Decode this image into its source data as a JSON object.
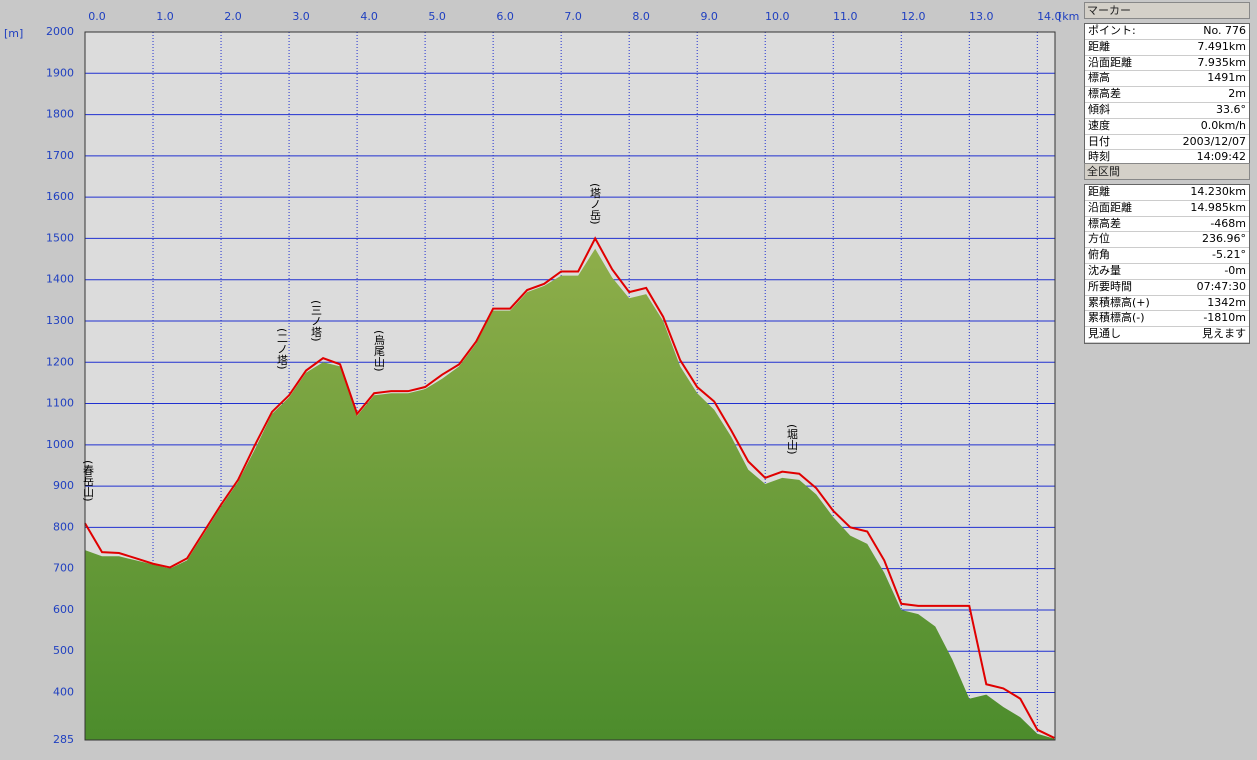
{
  "chart_data": {
    "type": "elevation-profile",
    "x_unit": "[km]",
    "y_unit": "[m]",
    "x": [
      0,
      0.25,
      0.5,
      0.75,
      1,
      1.25,
      1.5,
      1.75,
      2,
      2.25,
      2.5,
      2.75,
      3,
      3.25,
      3.5,
      3.75,
      4,
      4.25,
      4.5,
      4.75,
      5,
      5.25,
      5.5,
      5.75,
      6,
      6.25,
      6.5,
      6.75,
      7,
      7.25,
      7.5,
      7.75,
      8,
      8.25,
      8.5,
      8.75,
      9,
      9.25,
      9.5,
      9.75,
      10,
      10.25,
      10.5,
      10.75,
      11,
      11.25,
      11.5,
      11.75,
      12,
      12.25,
      12.5,
      12.75,
      13,
      13.25,
      13.5,
      13.75,
      14,
      14.25
    ],
    "series": [
      {
        "kind": "area",
        "color": "#5f9a36",
        "values": [
          745,
          730,
          730,
          720,
          710,
          700,
          720,
          785,
          850,
          910,
          990,
          1075,
          1115,
          1175,
          1200,
          1190,
          1070,
          1120,
          1125,
          1125,
          1135,
          1160,
          1190,
          1245,
          1325,
          1325,
          1370,
          1385,
          1410,
          1410,
          1475,
          1405,
          1355,
          1365,
          1300,
          1190,
          1125,
          1085,
          1020,
          940,
          905,
          920,
          915,
          880,
          825,
          780,
          760,
          690,
          600,
          590,
          560,
          480,
          385,
          395,
          365,
          340,
          300,
          288
        ]
      },
      {
        "kind": "line",
        "color": "#e00000",
        "values": [
          810,
          740,
          738,
          725,
          712,
          703,
          725,
          790,
          855,
          915,
          1000,
          1080,
          1120,
          1180,
          1210,
          1195,
          1075,
          1125,
          1130,
          1130,
          1140,
          1170,
          1195,
          1250,
          1330,
          1330,
          1375,
          1390,
          1420,
          1420,
          1500,
          1425,
          1370,
          1380,
          1310,
          1205,
          1140,
          1105,
          1035,
          960,
          920,
          935,
          930,
          895,
          840,
          800,
          790,
          720,
          615,
          610,
          610,
          610,
          610,
          420,
          410,
          385,
          310,
          290
        ]
      }
    ],
    "xlim": [
      0,
      14.26
    ],
    "ylim": [
      285,
      2000
    ],
    "xticks": [
      {
        "value": 0,
        "label": "0.0"
      },
      {
        "value": 1,
        "label": "1.0"
      },
      {
        "value": 2,
        "label": "2.0"
      },
      {
        "value": 3,
        "label": "3.0"
      },
      {
        "value": 4,
        "label": "4.0"
      },
      {
        "value": 5,
        "label": "5.0"
      },
      {
        "value": 6,
        "label": "6.0"
      },
      {
        "value": 7,
        "label": "7.0"
      },
      {
        "value": 8,
        "label": "8.0"
      },
      {
        "value": 9,
        "label": "9.0"
      },
      {
        "value": 10,
        "label": "10.0"
      },
      {
        "value": 11,
        "label": "11.0"
      },
      {
        "value": 12,
        "label": "12.0"
      },
      {
        "value": 13,
        "label": "13.0"
      },
      {
        "value": 14,
        "label": "14.0"
      }
    ],
    "yticks": [
      285,
      400,
      500,
      600,
      700,
      800,
      900,
      1000,
      1100,
      1200,
      1300,
      1400,
      1500,
      1600,
      1700,
      1800,
      1900,
      2000
    ],
    "grid": true,
    "annotations": [
      "(春岳山)",
      "(二ノ塔)",
      "(三ノ塔)",
      "(烏尾山)",
      "(塔ノ岳)",
      "(堀山)"
    ]
  },
  "marker_panel": {
    "title": "マーカー",
    "rows": [
      [
        "ポイント:",
        "No. 776"
      ],
      [
        "距離",
        "7.491km"
      ],
      [
        "沿面距離",
        "7.935km"
      ],
      [
        "標高",
        "1491m"
      ],
      [
        "標高差",
        "2m"
      ],
      [
        "傾斜",
        "33.6°"
      ],
      [
        "速度",
        "0.0km/h"
      ],
      [
        "日付",
        "2003/12/07"
      ],
      [
        "時刻",
        "14:09:42"
      ]
    ]
  },
  "section_panel": {
    "title": "全区間",
    "rows": [
      [
        "距離",
        "14.230km"
      ],
      [
        "沿面距離",
        "14.985km"
      ],
      [
        "標高差",
        "-468m"
      ],
      [
        "方位",
        "236.96°"
      ],
      [
        "俯角",
        "-5.21°"
      ],
      [
        "沈み量",
        "-0m"
      ],
      [
        "所要時間",
        "07:47:30"
      ],
      [
        "累積標高(+)",
        "1342m"
      ],
      [
        "累積標高(-)",
        "-1810m"
      ],
      [
        "見通し",
        "見えます"
      ]
    ]
  }
}
